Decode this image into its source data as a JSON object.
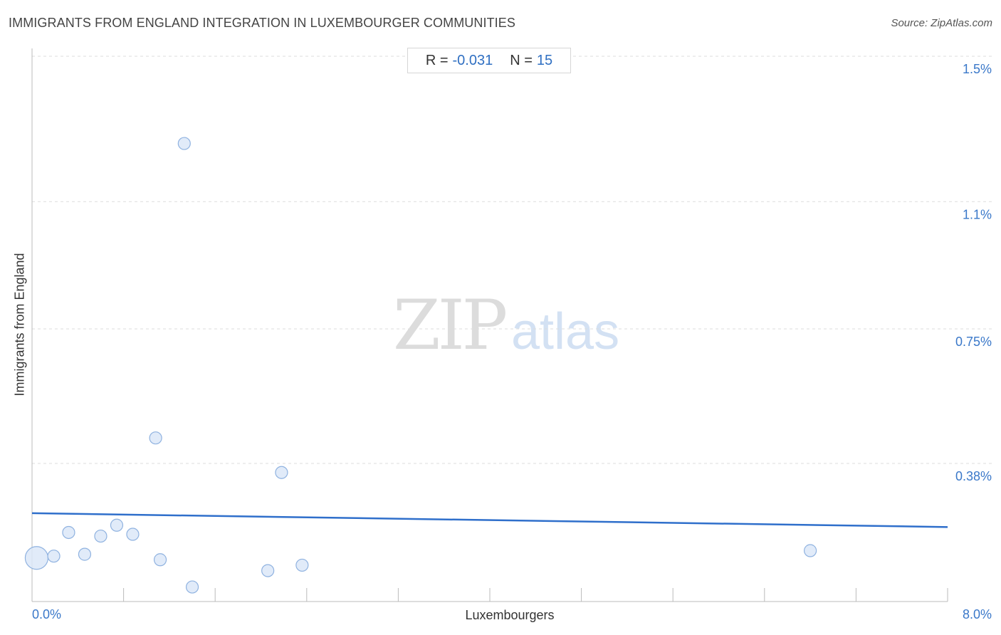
{
  "title": "IMMIGRANTS FROM ENGLAND INTEGRATION IN LUXEMBOURGER COMMUNITIES",
  "source": "Source: ZipAtlas.com",
  "stats": {
    "r_label": "R =",
    "r_value": "-0.031",
    "n_label": "N =",
    "n_value": "15"
  },
  "watermark": {
    "zip": "ZIP",
    "atlas": "atlas"
  },
  "colors": {
    "point_fill": "#dce8f8",
    "point_stroke": "#8fb2e0",
    "trend_line": "#2f6fcb",
    "tick_text": "#3a78c9",
    "grid": "#dddddd"
  },
  "chart_data": {
    "type": "scatter",
    "title": "IMMIGRANTS FROM ENGLAND INTEGRATION IN LUXEMBOURGER COMMUNITIES",
    "xlabel": "Luxembourgers",
    "ylabel": "Immigrants from England",
    "xlim": [
      0.0,
      8.0
    ],
    "ylim": [
      0.0,
      1.5
    ],
    "x_tick_labels": [
      {
        "value": 0.0,
        "label": "0.0%"
      },
      {
        "value": 8.0,
        "label": "8.0%"
      }
    ],
    "y_tick_labels": [
      {
        "value": 1.5,
        "label": "1.5%"
      },
      {
        "value": 1.1,
        "label": "1.1%"
      },
      {
        "value": 0.75,
        "label": "0.75%"
      },
      {
        "value": 0.38,
        "label": "0.38%"
      }
    ],
    "grid": "horizontal dashed",
    "points": [
      {
        "x": 0.04,
        "y": 0.12,
        "size": "large"
      },
      {
        "x": 0.19,
        "y": 0.125,
        "size": "normal"
      },
      {
        "x": 0.32,
        "y": 0.19,
        "size": "normal"
      },
      {
        "x": 0.46,
        "y": 0.13,
        "size": "normal"
      },
      {
        "x": 0.6,
        "y": 0.18,
        "size": "normal"
      },
      {
        "x": 0.74,
        "y": 0.21,
        "size": "normal"
      },
      {
        "x": 0.88,
        "y": 0.185,
        "size": "normal"
      },
      {
        "x": 1.08,
        "y": 0.45,
        "size": "normal"
      },
      {
        "x": 1.12,
        "y": 0.115,
        "size": "normal"
      },
      {
        "x": 1.33,
        "y": 1.26,
        "size": "normal"
      },
      {
        "x": 1.4,
        "y": 0.04,
        "size": "normal"
      },
      {
        "x": 2.06,
        "y": 0.085,
        "size": "normal"
      },
      {
        "x": 2.18,
        "y": 0.355,
        "size": "normal"
      },
      {
        "x": 2.36,
        "y": 0.1,
        "size": "normal"
      },
      {
        "x": 6.8,
        "y": 0.14,
        "size": "normal"
      }
    ],
    "trend_line": {
      "x": [
        0.0,
        8.0
      ],
      "y": [
        0.243,
        0.205
      ]
    }
  }
}
